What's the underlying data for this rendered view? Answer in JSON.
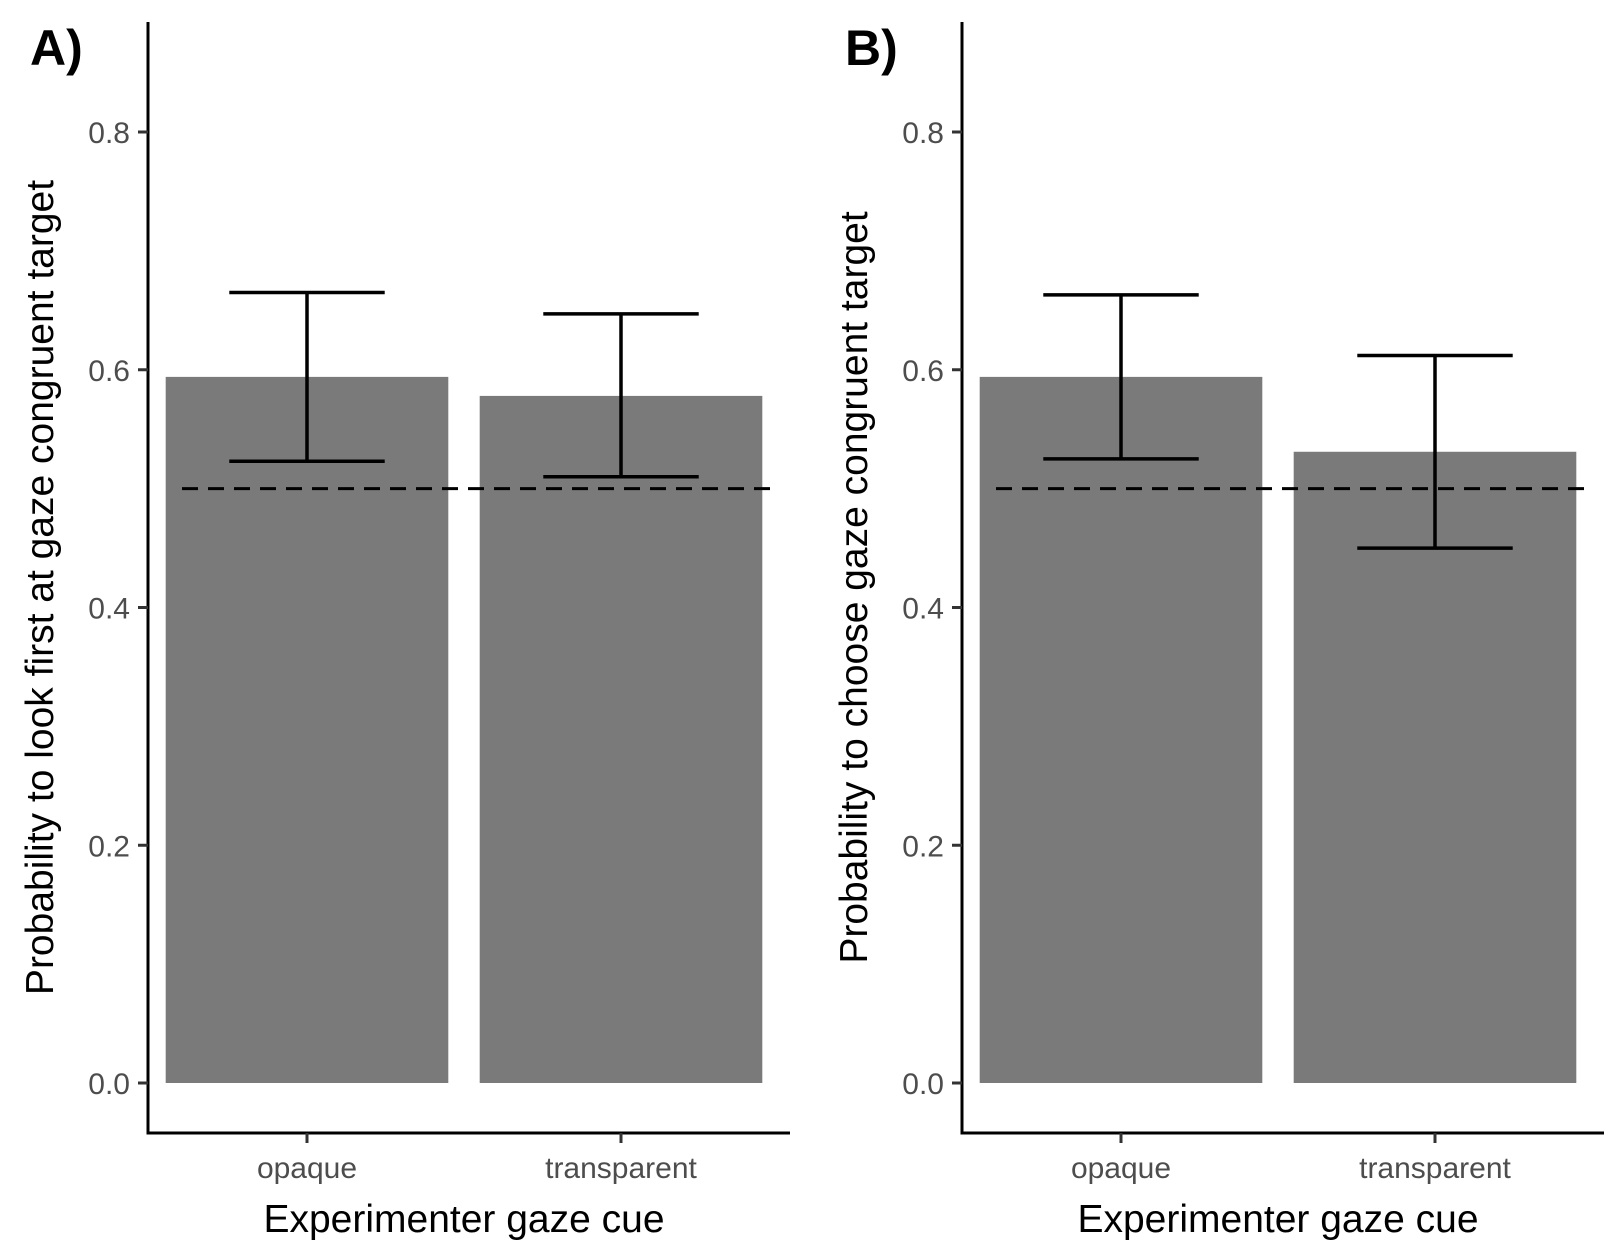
{
  "chart_data": [
    {
      "type": "bar",
      "panel_label": "A)",
      "categories": [
        "opaque",
        "transparent"
      ],
      "values": [
        0.594,
        0.578
      ],
      "error_lower": [
        0.523,
        0.51
      ],
      "error_upper": [
        0.665,
        0.647
      ],
      "reference_line": 0.5,
      "reference_line_style": "dashed",
      "xlabel": "Experimenter gaze cue",
      "ylabel": "Probability to look first at gaze congruent target",
      "yticks": [
        0.0,
        0.2,
        0.4,
        0.6,
        0.8
      ],
      "ytick_labels": [
        "0.0",
        "0.2",
        "0.4",
        "0.6",
        "0.8"
      ],
      "ylim": [
        -0.043,
        0.89
      ],
      "grid": false,
      "bar_color": "#7a7a7a"
    },
    {
      "type": "bar",
      "panel_label": "B)",
      "categories": [
        "opaque",
        "transparent"
      ],
      "values": [
        0.594,
        0.531
      ],
      "error_lower": [
        0.525,
        0.45
      ],
      "error_upper": [
        0.663,
        0.612
      ],
      "reference_line": 0.5,
      "reference_line_style": "dashed",
      "xlabel": "Experimenter gaze cue",
      "ylabel": "Probability to choose gaze congruent target",
      "yticks": [
        0.0,
        0.2,
        0.4,
        0.6,
        0.8
      ],
      "ytick_labels": [
        "0.0",
        "0.2",
        "0.4",
        "0.6",
        "0.8"
      ],
      "ylim": [
        -0.043,
        0.89
      ],
      "grid": false,
      "bar_color": "#7a7a7a"
    }
  ]
}
